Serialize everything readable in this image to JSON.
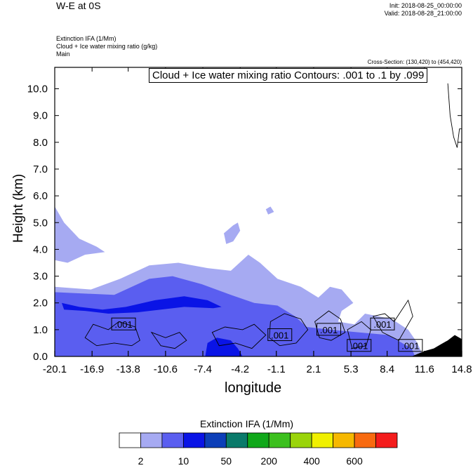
{
  "header": {
    "title": "W-E at 0S",
    "init": "Init: 2018-08-25_00:00:00",
    "valid": "Valid: 2018-08-28_21:00:00",
    "var_line1": "Extinction IFA   (1/Mm)",
    "var_line2": "Cloud + Ice water mixing ratio   (g/kg)",
    "var_line3": "Main",
    "cross_section": "Cross-Section: (130,420) to (454,420)",
    "contour_info": "Cloud + Ice water mixing ratio Contours: .001 to .1 by .099"
  },
  "chart_data": {
    "type": "heatmap",
    "xlabel": "longitude",
    "ylabel": "Height (km)",
    "x_ticks": [
      "-20.1",
      "-16.9",
      "-13.8",
      "-10.6",
      "-7.4",
      "-4.2",
      "-1.1",
      "2.1",
      "5.3",
      "8.4",
      "11.6",
      "14.8"
    ],
    "y_ticks": [
      "0.0",
      "1.0",
      "2.0",
      "3.0",
      "4.0",
      "5.0",
      "6.0",
      "7.0",
      "8.0",
      "9.0",
      "10.0"
    ],
    "xlim": [
      -20.1,
      14.8
    ],
    "ylim": [
      0,
      10.8
    ],
    "contour_labels": [
      {
        "x": -14.2,
        "y": 1.2,
        "text": ".001"
      },
      {
        "x": -0.8,
        "y": 0.8,
        "text": ".001"
      },
      {
        "x": 3.4,
        "y": 1.0,
        "text": ".001"
      },
      {
        "x": 6.0,
        "y": 0.4,
        "text": ".001"
      },
      {
        "x": 8.0,
        "y": 1.2,
        "text": ".001"
      },
      {
        "x": 10.4,
        "y": 0.4,
        "text": ".001"
      }
    ],
    "colorbar": {
      "title": "Extinction IFA  (1/Mm)",
      "colors": [
        "#ffffff",
        "#a6aaf2",
        "#5a5ef0",
        "#0a14e6",
        "#0c3fb8",
        "#0a7a6a",
        "#10a81a",
        "#3cc01e",
        "#9ad40a",
        "#f0f000",
        "#f6b800",
        "#f86a10",
        "#f41c1c"
      ],
      "labels": [
        "2",
        "10",
        "50",
        "200",
        "400",
        "600"
      ]
    }
  }
}
